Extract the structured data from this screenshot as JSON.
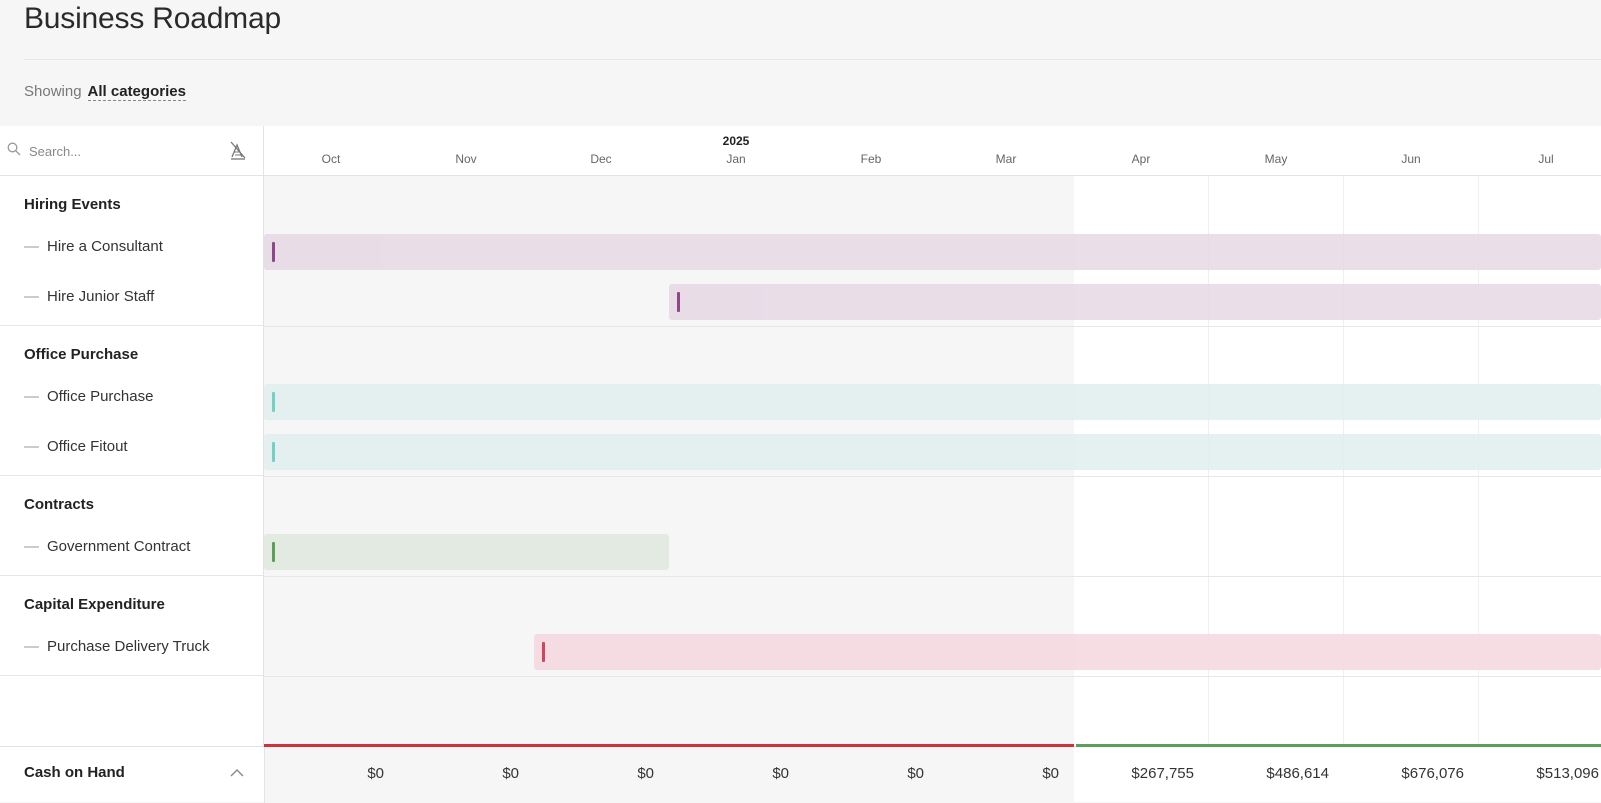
{
  "page": {
    "title": "Business Roadmap"
  },
  "filter": {
    "label": "Showing",
    "value": "All categories"
  },
  "search": {
    "placeholder": "Search..."
  },
  "timeline": {
    "year": "2025",
    "months": [
      "Oct",
      "Nov",
      "Dec",
      "Jan",
      "Feb",
      "Mar",
      "Apr",
      "May",
      "Jun",
      "Jul"
    ]
  },
  "groups": [
    {
      "name": "Hiring Events",
      "items": [
        "Hire a Consultant",
        "Hire Junior Staff"
      ]
    },
    {
      "name": "Office Purchase",
      "items": [
        "Office Purchase",
        "Office Fitout"
      ]
    },
    {
      "name": "Contracts",
      "items": [
        "Government Contract"
      ]
    },
    {
      "name": "Capital Expenditure",
      "items": [
        "Purchase Delivery Truck"
      ]
    }
  ],
  "colors": {
    "hiring_bar": "#e6d8e5",
    "hiring_tick": "#7b2a7a",
    "office_bar": "#e1eeee",
    "office_tick": "#5ecabb",
    "contract_bar": "#e2eae2",
    "contract_tick": "#5a9f5a",
    "capex_bar": "#f5d9e0",
    "capex_tick": "#d0324e",
    "cash_negative": "#d0323a",
    "cash_positive": "#5c9f5c"
  },
  "cash": {
    "label": "Cash on Hand",
    "values": [
      "$0",
      "$0",
      "$0",
      "$0",
      "$0",
      "$0",
      "$267,755",
      "$486,614",
      "$676,076",
      "$513,096"
    ]
  }
}
